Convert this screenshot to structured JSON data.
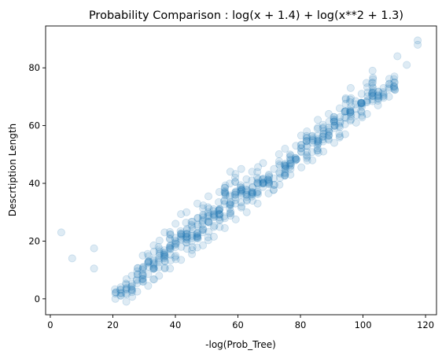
{
  "chart_data": {
    "type": "scatter",
    "title": "Probability Comparison : log(x + 1.4) + log(x**2 + 1.3)",
    "xlabel": "-log(Prob_Tree)",
    "ylabel": "Descrtiption Length",
    "xlim": [
      -1.5,
      123.5
    ],
    "ylim": [
      -5.5,
      94.5
    ],
    "xticks": [
      0,
      20,
      40,
      60,
      80,
      100,
      120
    ],
    "yticks": [
      0,
      20,
      40,
      60,
      80
    ],
    "grid": false,
    "marker_color": "#1f77b4",
    "marker_alpha": 0.15,
    "outliers": [
      [
        3.5,
        23
      ],
      [
        7,
        14
      ],
      [
        14,
        17.5
      ],
      [
        14,
        10.5
      ],
      [
        111,
        84
      ],
      [
        114,
        81
      ],
      [
        117.5,
        89.5
      ],
      [
        117.5,
        88
      ]
    ],
    "column_step": 1.75,
    "columns": [
      [
        20.8,
        0,
        4
      ],
      [
        24.3,
        -1,
        8
      ],
      [
        27.8,
        2.5,
        15
      ],
      [
        31.3,
        4.5,
        18.5
      ],
      [
        34.8,
        8,
        23
      ],
      [
        38.3,
        10.5,
        26
      ],
      [
        41.8,
        13.5,
        30
      ],
      [
        45.3,
        15.5,
        33
      ],
      [
        48.8,
        18.5,
        35.5
      ],
      [
        52.3,
        21.5,
        37
      ],
      [
        55.8,
        24.5,
        44
      ],
      [
        59.3,
        27.5,
        45
      ],
      [
        62.8,
        30,
        44
      ],
      [
        66.3,
        33,
        47
      ],
      [
        69.8,
        36.5,
        45
      ],
      [
        73.3,
        39.5,
        52
      ],
      [
        76.8,
        43,
        53
      ],
      [
        80.3,
        45.5,
        58
      ],
      [
        83.8,
        48,
        62
      ],
      [
        87.3,
        51,
        64
      ],
      [
        90.8,
        54,
        66
      ],
      [
        94.3,
        57,
        73
      ],
      [
        97.8,
        61,
        71
      ],
      [
        101.3,
        64,
        79
      ],
      [
        104.8,
        67,
        73
      ],
      [
        108.3,
        70,
        77
      ]
    ]
  }
}
